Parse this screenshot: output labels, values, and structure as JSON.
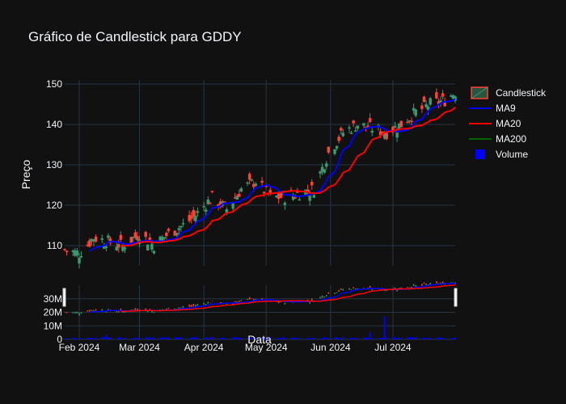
{
  "chart_data": {
    "type": "candlestick",
    "title": "Gráfico de Candlestick para GDDY",
    "xlabel": "Data",
    "ylabel": "Preço",
    "x_range": [
      "2024-01-25",
      "2024-07-31"
    ],
    "price_ylim": [
      105,
      151
    ],
    "price_ticks": [
      110,
      120,
      130,
      140,
      150
    ],
    "volume_ylim": [
      0,
      40000000
    ],
    "volume_ticks": [
      0,
      10000000,
      20000000,
      30000000
    ],
    "volume_tick_labels": [
      "0",
      "10M",
      "20M",
      "30M"
    ],
    "x_ticks": [
      "2024-02-01",
      "2024-03-01",
      "2024-04-01",
      "2024-05-01",
      "2024-06-01",
      "2024-07-01"
    ],
    "x_tick_labels": [
      "Feb 2024",
      "Mar 2024",
      "Apr 2024",
      "May 2024",
      "Jun 2024",
      "Jul 2024"
    ],
    "legend": {
      "position": "right",
      "entries": [
        {
          "name": "Candlestick",
          "color": "#2ca02c",
          "kind": "candle"
        },
        {
          "name": "MA9",
          "color": "#0000ff",
          "kind": "line"
        },
        {
          "name": "MA20",
          "color": "#ff0000",
          "kind": "line"
        },
        {
          "name": "MA200",
          "color": "#006400",
          "kind": "line"
        },
        {
          "name": "Volume",
          "color": "#0000ff",
          "kind": "square"
        }
      ]
    },
    "colors": {
      "up": "#3d9970",
      "down": "#ff4136",
      "grid": "#283442",
      "background": "#111111"
    },
    "price_anchors": [
      [
        "2024-01-25",
        109
      ],
      [
        "2024-02-01",
        108
      ],
      [
        "2024-02-08",
        112
      ],
      [
        "2024-02-15",
        111
      ],
      [
        "2024-02-22",
        110
      ],
      [
        "2024-03-01",
        113
      ],
      [
        "2024-03-08",
        110
      ],
      [
        "2024-03-15",
        113
      ],
      [
        "2024-03-22",
        115
      ],
      [
        "2024-03-29",
        118
      ],
      [
        "2024-04-05",
        122
      ],
      [
        "2024-04-12",
        119
      ],
      [
        "2024-04-19",
        124
      ],
      [
        "2024-04-26",
        126
      ],
      [
        "2024-05-03",
        122
      ],
      [
        "2024-05-10",
        122
      ],
      [
        "2024-05-17",
        123
      ],
      [
        "2024-05-24",
        124
      ],
      [
        "2024-05-31",
        133
      ],
      [
        "2024-06-07",
        138
      ],
      [
        "2024-06-14",
        140
      ],
      [
        "2024-06-21",
        139
      ],
      [
        "2024-06-28",
        138
      ],
      [
        "2024-07-05",
        140
      ],
      [
        "2024-07-12",
        143
      ],
      [
        "2024-07-19",
        145
      ],
      [
        "2024-07-26",
        146
      ],
      [
        "2024-07-31",
        148
      ]
    ],
    "volume_spikes": [
      [
        "2024-06-27",
        17000000
      ],
      [
        "2024-06-20",
        5000000
      ],
      [
        "2024-02-14",
        3000000
      ]
    ]
  }
}
